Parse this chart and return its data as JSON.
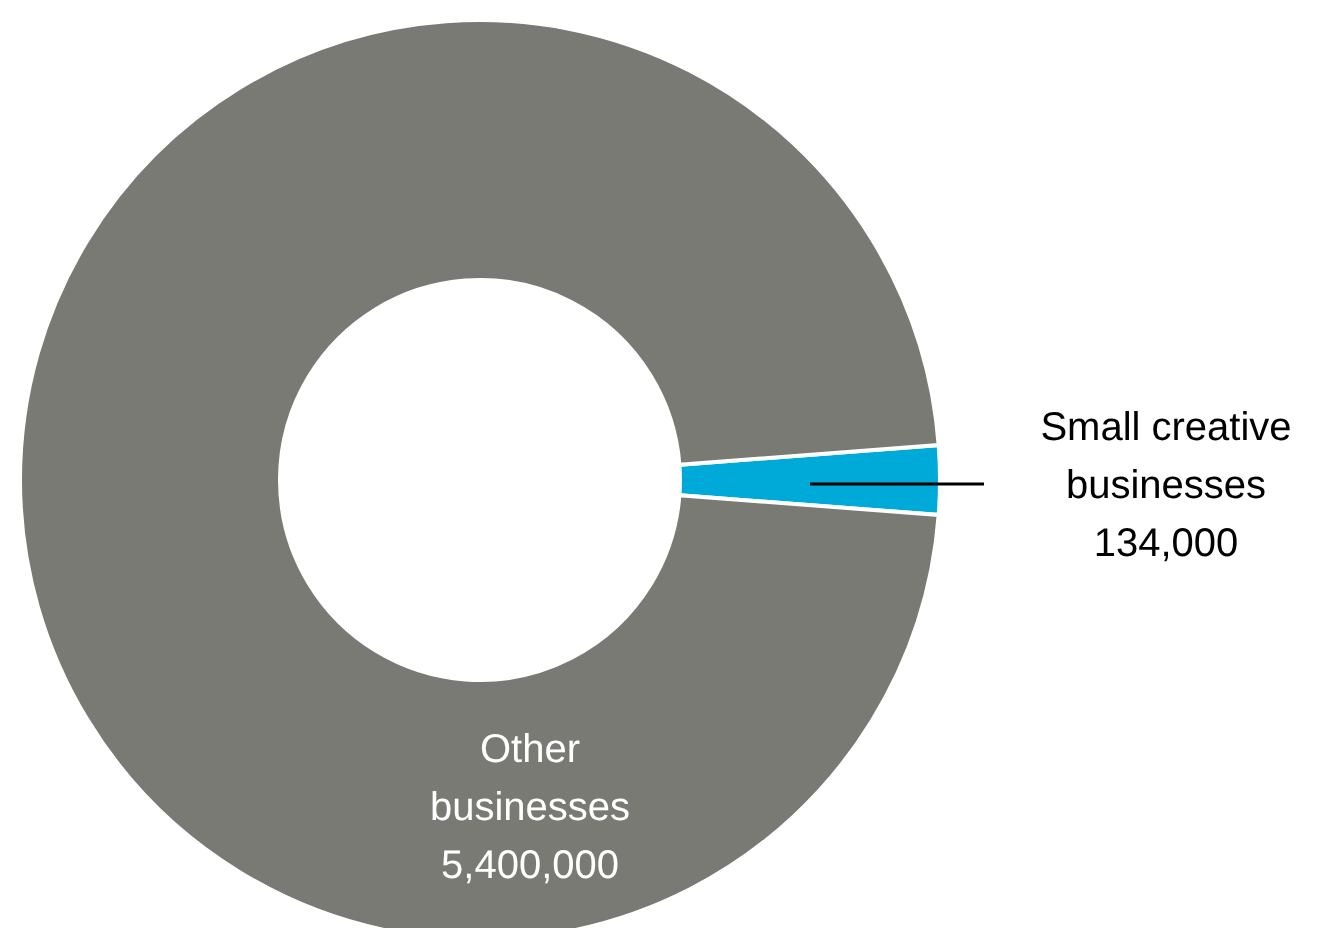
{
  "chart_data": {
    "type": "donut",
    "categories": [
      "Small creative businesses",
      "Other businesses"
    ],
    "values": [
      134000,
      5400000
    ],
    "value_labels": [
      "134,000",
      "5,400,000"
    ],
    "colors": [
      "#00aad8",
      "#7a7a74"
    ]
  }
}
